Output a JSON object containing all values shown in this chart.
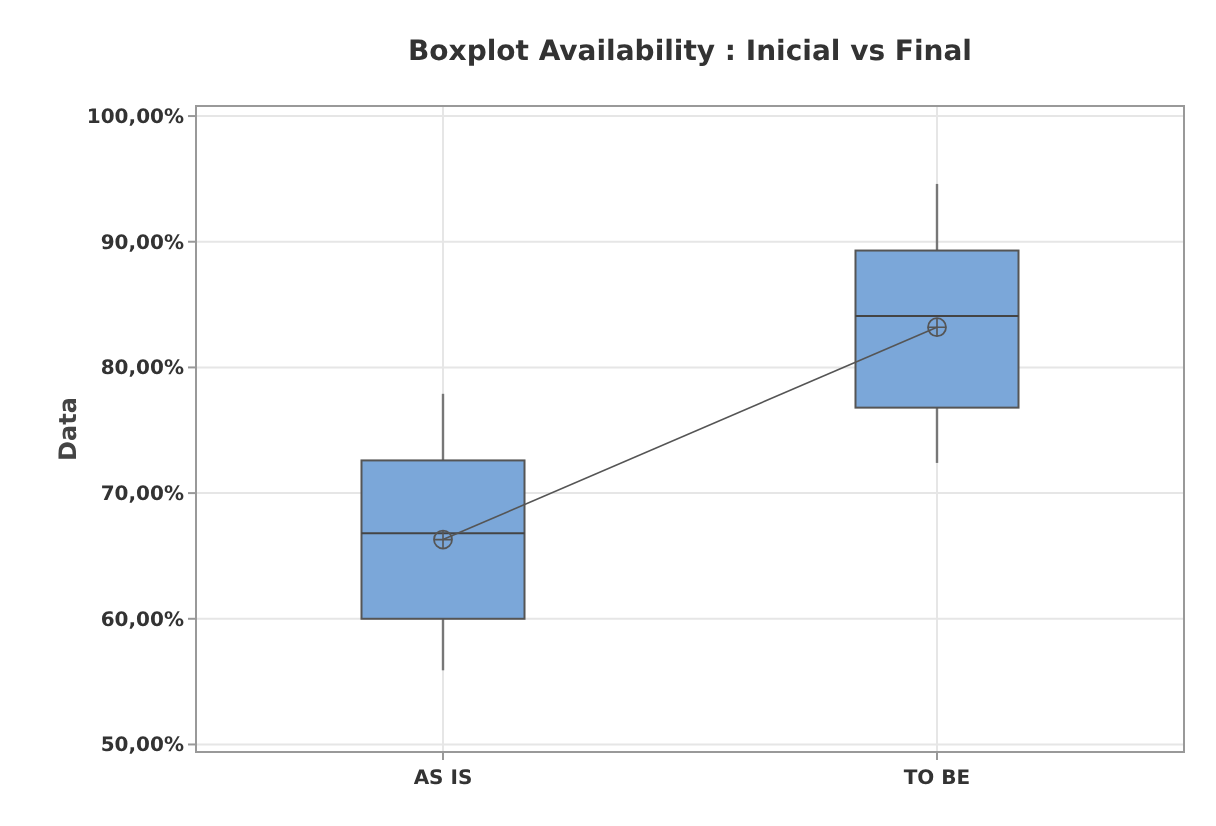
{
  "chart_data": {
    "type": "box",
    "title": "Boxplot Availability : Inicial vs Final",
    "ylabel": "Data",
    "categories": [
      "AS IS",
      "TO BE"
    ],
    "series": [
      {
        "color": "#7ba7d9",
        "boxes": [
          {
            "low": 55.9,
            "q1": 60.0,
            "median": 66.8,
            "q3": 72.6,
            "high": 77.9
          },
          {
            "low": 72.4,
            "q1": 76.8,
            "median": 84.1,
            "q3": 89.3,
            "high": 94.6
          }
        ]
      },
      {
        "type": "line",
        "color": "#555555",
        "values": [
          66.3,
          83.2
        ],
        "marker": "circle"
      }
    ],
    "ylim": [
      49.4,
      100.8
    ],
    "yticks": [
      {
        "value": 50,
        "label": "50,00%"
      },
      {
        "value": 60,
        "label": "60,00%"
      },
      {
        "value": 70,
        "label": "70,00%"
      },
      {
        "value": 80,
        "label": "80,00%"
      },
      {
        "value": 90,
        "label": "90,00%"
      },
      {
        "value": 100,
        "label": "100,00%"
      }
    ],
    "grid": true
  }
}
